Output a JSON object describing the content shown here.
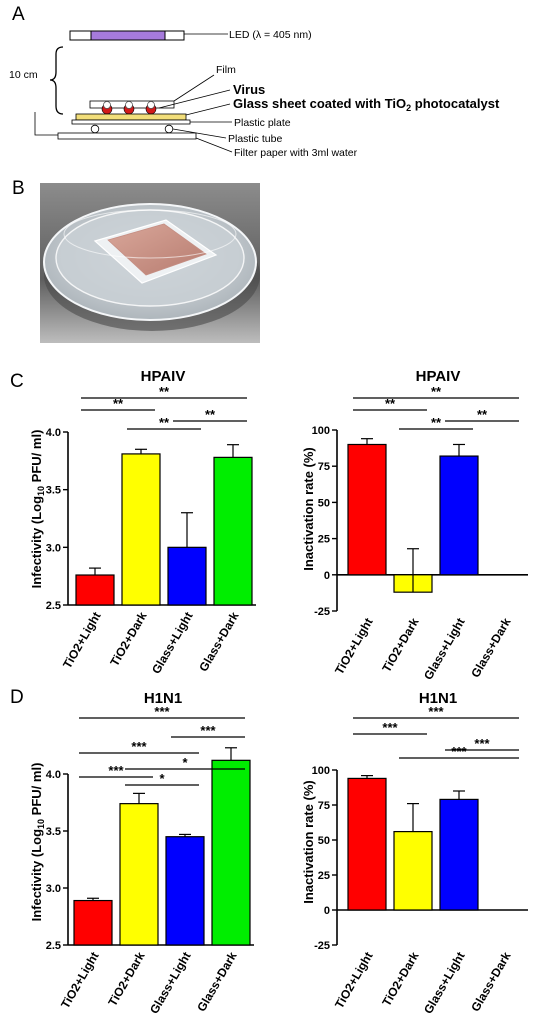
{
  "panels": {
    "A": {
      "letter": "A",
      "led_label": "LED (λ = 405 nm)",
      "distance_label": "10 cm",
      "film_label": "Film",
      "virus_label": "Virus",
      "glass_label_pre": "Glass sheet coated with TiO",
      "glass_label_sub": "2",
      "glass_label_post": " photocatalyst",
      "plate_label": "Plastic plate",
      "tube_label": "Plastic tube",
      "filter_label": "Filter paper with 3ml water",
      "colors": {
        "led": "#a67bdc",
        "film": "#ffffff",
        "virus": "#d21a1a",
        "glass": "#f2de7a"
      }
    },
    "B": {
      "letter": "B",
      "photo": "petri-dish-with-glass-sheet-photo"
    },
    "C": {
      "letter": "C"
    },
    "D": {
      "letter": "D"
    }
  },
  "axis_text": {
    "infectivity_pre": "Infectivity (Log",
    "infectivity_sub": "10",
    "infectivity_post": " PFU/ ml)",
    "inactivation": "Inactivation rate (%)"
  },
  "chart_data": [
    {
      "id": "c-infectivity",
      "type": "bar",
      "title": "HPAIV",
      "ylabel": "Infectivity (Log10 PFU/ ml)",
      "ylim": [
        2.5,
        4.0
      ],
      "yticks": [
        "2.5",
        "3.0",
        "3.5",
        "4.0"
      ],
      "grid": false,
      "categories": [
        "TiO2+Light",
        "TiO2+Dark",
        "Glass+Light",
        "Glass+Dark"
      ],
      "values": [
        2.76,
        3.81,
        3.0,
        3.78
      ],
      "errors": [
        0.06,
        0.04,
        0.3,
        0.11
      ],
      "colors": [
        "#ff0000",
        "#ffff00",
        "#0000ff",
        "#00ee00"
      ],
      "significance": [
        {
          "from": 1,
          "to": 4,
          "label": "**"
        },
        {
          "from": 1,
          "to": 2,
          "label": "**"
        },
        {
          "from": 3,
          "to": 4,
          "label": "**"
        },
        {
          "from": 2,
          "to": 3,
          "label": "**"
        }
      ]
    },
    {
      "id": "c-inactivation",
      "type": "bar",
      "title": "HPAIV",
      "ylabel": "Inactivation rate (%)",
      "ylim": [
        -25,
        100
      ],
      "yticks": [
        "-25",
        "0",
        "25",
        "50",
        "75",
        "100"
      ],
      "grid": false,
      "categories": [
        "TiO2+Light",
        "TiO2+Dark",
        "Glass+Light",
        "Glass+Dark"
      ],
      "values": [
        90,
        -12,
        82,
        0
      ],
      "errors": [
        4,
        30,
        8,
        0
      ],
      "colors": [
        "#ff0000",
        "#ffff00",
        "#0000ff",
        "#00ee00"
      ],
      "significance": [
        {
          "from": 1,
          "to": 4,
          "label": "**"
        },
        {
          "from": 1,
          "to": 2,
          "label": "**"
        },
        {
          "from": 3,
          "to": 4,
          "label": "**"
        },
        {
          "from": 2,
          "to": 3,
          "label": "**"
        }
      ]
    },
    {
      "id": "d-infectivity",
      "type": "bar",
      "title": "H1N1",
      "ylabel": "Infectivity (Log10 PFU/ ml)",
      "ylim": [
        2.5,
        4.0
      ],
      "yticks": [
        "2.5",
        "3.0",
        "3.5",
        "4.0"
      ],
      "grid": false,
      "categories": [
        "TiO2+Light",
        "TiO2+Dark",
        "Glass+Light",
        "Glass+Dark"
      ],
      "values": [
        2.89,
        3.74,
        3.45,
        4.12
      ],
      "errors": [
        0.02,
        0.09,
        0.02,
        0.11
      ],
      "colors": [
        "#ff0000",
        "#ffff00",
        "#0000ff",
        "#00ee00"
      ],
      "significance": [
        {
          "from": 1,
          "to": 4,
          "label": "***"
        },
        {
          "from": 3,
          "to": 4,
          "label": "***"
        },
        {
          "from": 1,
          "to": 3,
          "label": "***"
        },
        {
          "from": 2,
          "to": 4,
          "label": "*"
        },
        {
          "from": 1,
          "to": 2,
          "label": "***"
        },
        {
          "from": 2,
          "to": 3,
          "label": "*"
        }
      ]
    },
    {
      "id": "d-inactivation",
      "type": "bar",
      "title": "H1N1",
      "ylabel": "Inactivation rate (%)",
      "ylim": [
        -25,
        100
      ],
      "yticks": [
        "-25",
        "0",
        "25",
        "50",
        "75",
        "100"
      ],
      "grid": false,
      "categories": [
        "TiO2+Light",
        "TiO2+Dark",
        "Glass+Light",
        "Glass+Dark"
      ],
      "values": [
        94,
        56,
        79,
        0
      ],
      "errors": [
        2,
        20,
        6,
        0
      ],
      "colors": [
        "#ff0000",
        "#ffff00",
        "#0000ff",
        "#00ee00"
      ],
      "significance": [
        {
          "from": 1,
          "to": 4,
          "label": "***"
        },
        {
          "from": 1,
          "to": 2,
          "label": "***"
        },
        {
          "from": 3,
          "to": 4,
          "label": "***"
        },
        {
          "from": 2,
          "to": 4,
          "label": "***"
        }
      ]
    }
  ]
}
